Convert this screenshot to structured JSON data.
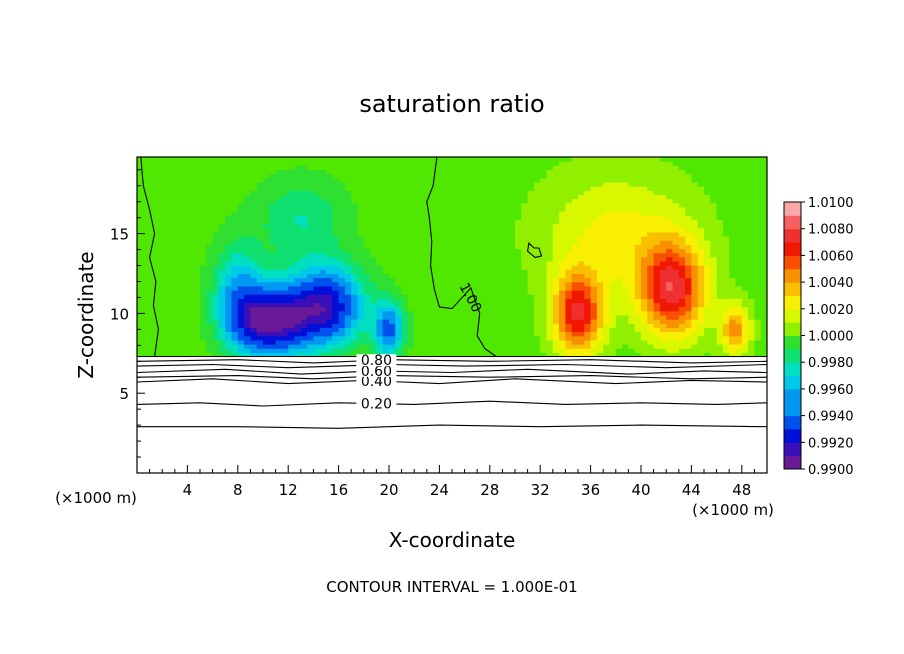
{
  "chart_data": {
    "type": "heatmap",
    "title": "saturation ratio",
    "xlabel": "X-coordinate",
    "ylabel": "Z-coordinate",
    "x_unit": "(×1000 m)",
    "y_unit": "(×1000 m)",
    "xlim": [
      0,
      50
    ],
    "ylim": [
      0,
      19.8
    ],
    "x_ticks": [
      4,
      8,
      12,
      16,
      20,
      24,
      28,
      32,
      36,
      40,
      44,
      48
    ],
    "y_ticks": [
      5,
      10,
      15
    ],
    "footer": "CONTOUR INTERVAL = 1.000E-01",
    "colorbar": {
      "min": 0.99,
      "max": 1.01,
      "step": 0.001,
      "labels": [
        "1.0100",
        "1.0080",
        "1.0060",
        "1.0040",
        "1.0020",
        "1.0000",
        "0.9980",
        "0.9960",
        "0.9940",
        "0.9920",
        "0.9900"
      ],
      "stops": [
        {
          "v": 0.99,
          "color": "#6a1a96"
        },
        {
          "v": 0.991,
          "color": "#3a0fb8"
        },
        {
          "v": 0.992,
          "color": "#0010d8"
        },
        {
          "v": 0.9935,
          "color": "#0050ee"
        },
        {
          "v": 0.995,
          "color": "#0098f0"
        },
        {
          "v": 0.996,
          "color": "#00c8e8"
        },
        {
          "v": 0.997,
          "color": "#00e0c0"
        },
        {
          "v": 0.998,
          "color": "#10e070"
        },
        {
          "v": 0.999,
          "color": "#30e030"
        },
        {
          "v": 1.0,
          "color": "#50e800"
        },
        {
          "v": 1.001,
          "color": "#90f000"
        },
        {
          "v": 1.002,
          "color": "#d8f800"
        },
        {
          "v": 1.003,
          "color": "#f8f000"
        },
        {
          "v": 1.004,
          "color": "#f8c000"
        },
        {
          "v": 1.005,
          "color": "#f89000"
        },
        {
          "v": 1.006,
          "color": "#f85000"
        },
        {
          "v": 1.007,
          "color": "#f01800"
        },
        {
          "v": 1.008,
          "color": "#f03030"
        },
        {
          "v": 1.009,
          "color": "#f86060"
        },
        {
          "v": 1.01,
          "color": "#f8a8a8"
        }
      ]
    },
    "field_base": 1.0,
    "field_below_z": 7.3,
    "features": [
      {
        "kind": "dry",
        "x": 10.5,
        "z": 9.5,
        "sx": 3.0,
        "sz": 2.2,
        "amp": -0.0095
      },
      {
        "kind": "dry",
        "x": 15.0,
        "z": 10.5,
        "sx": 3.0,
        "sz": 2.5,
        "amp": -0.0085
      },
      {
        "kind": "dry",
        "x": 20.0,
        "z": 9.0,
        "sx": 1.2,
        "sz": 1.8,
        "amp": -0.006
      },
      {
        "kind": "dry",
        "x": 8.0,
        "z": 11.5,
        "sx": 2.0,
        "sz": 3.0,
        "amp": -0.004
      },
      {
        "kind": "dry",
        "x": 13.0,
        "z": 16.0,
        "sx": 3.5,
        "sz": 2.5,
        "amp": -0.0025
      },
      {
        "kind": "moist",
        "x": 35.0,
        "z": 10.0,
        "sx": 2.0,
        "sz": 2.6,
        "amp": 0.0075
      },
      {
        "kind": "moist",
        "x": 42.5,
        "z": 11.5,
        "sx": 2.6,
        "sz": 3.0,
        "amp": 0.0078
      },
      {
        "kind": "moist",
        "x": 47.5,
        "z": 9.0,
        "sx": 1.2,
        "sz": 1.6,
        "amp": 0.005
      },
      {
        "kind": "moist",
        "x": 38.0,
        "z": 15.0,
        "sx": 6.0,
        "sz": 4.0,
        "amp": 0.0028
      }
    ],
    "contour_lines": [
      {
        "label": "0.20",
        "label_x": 19.0,
        "points": [
          [
            0,
            4.3
          ],
          [
            5,
            4.4
          ],
          [
            10,
            4.2
          ],
          [
            16,
            4.4
          ],
          [
            22,
            4.3
          ],
          [
            28,
            4.5
          ],
          [
            34,
            4.3
          ],
          [
            40,
            4.4
          ],
          [
            46,
            4.3
          ],
          [
            50,
            4.4
          ]
        ]
      },
      {
        "label": "",
        "label_x": null,
        "points": [
          [
            0,
            2.9
          ],
          [
            8,
            2.9
          ],
          [
            16,
            2.8
          ],
          [
            24,
            3.0
          ],
          [
            32,
            2.9
          ],
          [
            40,
            3.0
          ],
          [
            50,
            2.9
          ]
        ]
      },
      {
        "label": "0.40",
        "label_x": 19.0,
        "points": [
          [
            0,
            5.7
          ],
          [
            6,
            5.9
          ],
          [
            12,
            5.6
          ],
          [
            18,
            5.8
          ],
          [
            24,
            5.6
          ],
          [
            30,
            5.9
          ],
          [
            38,
            5.6
          ],
          [
            44,
            5.8
          ],
          [
            50,
            5.7
          ]
        ]
      },
      {
        "label": "0.60",
        "label_x": 19.0,
        "points": [
          [
            0,
            6.3
          ],
          [
            7,
            6.5
          ],
          [
            13,
            6.2
          ],
          [
            19,
            6.4
          ],
          [
            25,
            6.3
          ],
          [
            31,
            6.5
          ],
          [
            39,
            6.2
          ],
          [
            45,
            6.4
          ],
          [
            50,
            6.3
          ]
        ]
      },
      {
        "label": "",
        "label_x": null,
        "points": [
          [
            0,
            6.0
          ],
          [
            8,
            6.1
          ],
          [
            14,
            5.9
          ],
          [
            20,
            6.1
          ],
          [
            28,
            6.0
          ],
          [
            36,
            6.1
          ],
          [
            44,
            5.9
          ],
          [
            50,
            6.0
          ]
        ]
      },
      {
        "label": "",
        "label_x": null,
        "points": [
          [
            0,
            6.7
          ],
          [
            6,
            6.8
          ],
          [
            12,
            6.6
          ],
          [
            20,
            6.8
          ],
          [
            26,
            6.7
          ],
          [
            34,
            6.8
          ],
          [
            42,
            6.6
          ],
          [
            50,
            6.8
          ]
        ]
      },
      {
        "label": "0.80",
        "label_x": 19.0,
        "points": [
          [
            0,
            7.0
          ],
          [
            8,
            7.1
          ],
          [
            14,
            6.9
          ],
          [
            20,
            7.1
          ],
          [
            28,
            7.0
          ],
          [
            36,
            7.1
          ],
          [
            44,
            6.9
          ],
          [
            50,
            7.0
          ]
        ]
      },
      {
        "label": "",
        "label_x": null,
        "points": [
          [
            0,
            7.3
          ],
          [
            50,
            7.3
          ]
        ]
      },
      {
        "label": "1.00",
        "label_x": 26.5,
        "label_z": 11.0,
        "points": [
          [
            23.8,
            19.8
          ],
          [
            23.5,
            18
          ],
          [
            23.0,
            17
          ],
          [
            23.2,
            16
          ],
          [
            23.4,
            14.5
          ],
          [
            23.3,
            13.0
          ],
          [
            23.6,
            11.5
          ],
          [
            24.0,
            10.4
          ],
          [
            25.0,
            10.3
          ],
          [
            26.5,
            11.6
          ],
          [
            27.2,
            10.0
          ],
          [
            27.0,
            8.6
          ],
          [
            27.6,
            7.8
          ],
          [
            28.5,
            7.3
          ]
        ]
      },
      {
        "label": "",
        "label_x": null,
        "points": [
          [
            0.3,
            19.8
          ],
          [
            0.5,
            18
          ],
          [
            1.0,
            16.5
          ],
          [
            1.4,
            15.0
          ],
          [
            1.0,
            13.5
          ],
          [
            1.5,
            12.0
          ],
          [
            1.3,
            10.5
          ],
          [
            1.7,
            9.0
          ],
          [
            1.4,
            7.3
          ]
        ]
      },
      {
        "label": "",
        "label_x": null,
        "closed": true,
        "points": [
          [
            31.1,
            14.4
          ],
          [
            31.5,
            14.1
          ],
          [
            31.9,
            14.1
          ],
          [
            32.1,
            13.6
          ],
          [
            31.6,
            13.5
          ],
          [
            31.0,
            13.9
          ]
        ]
      }
    ]
  }
}
